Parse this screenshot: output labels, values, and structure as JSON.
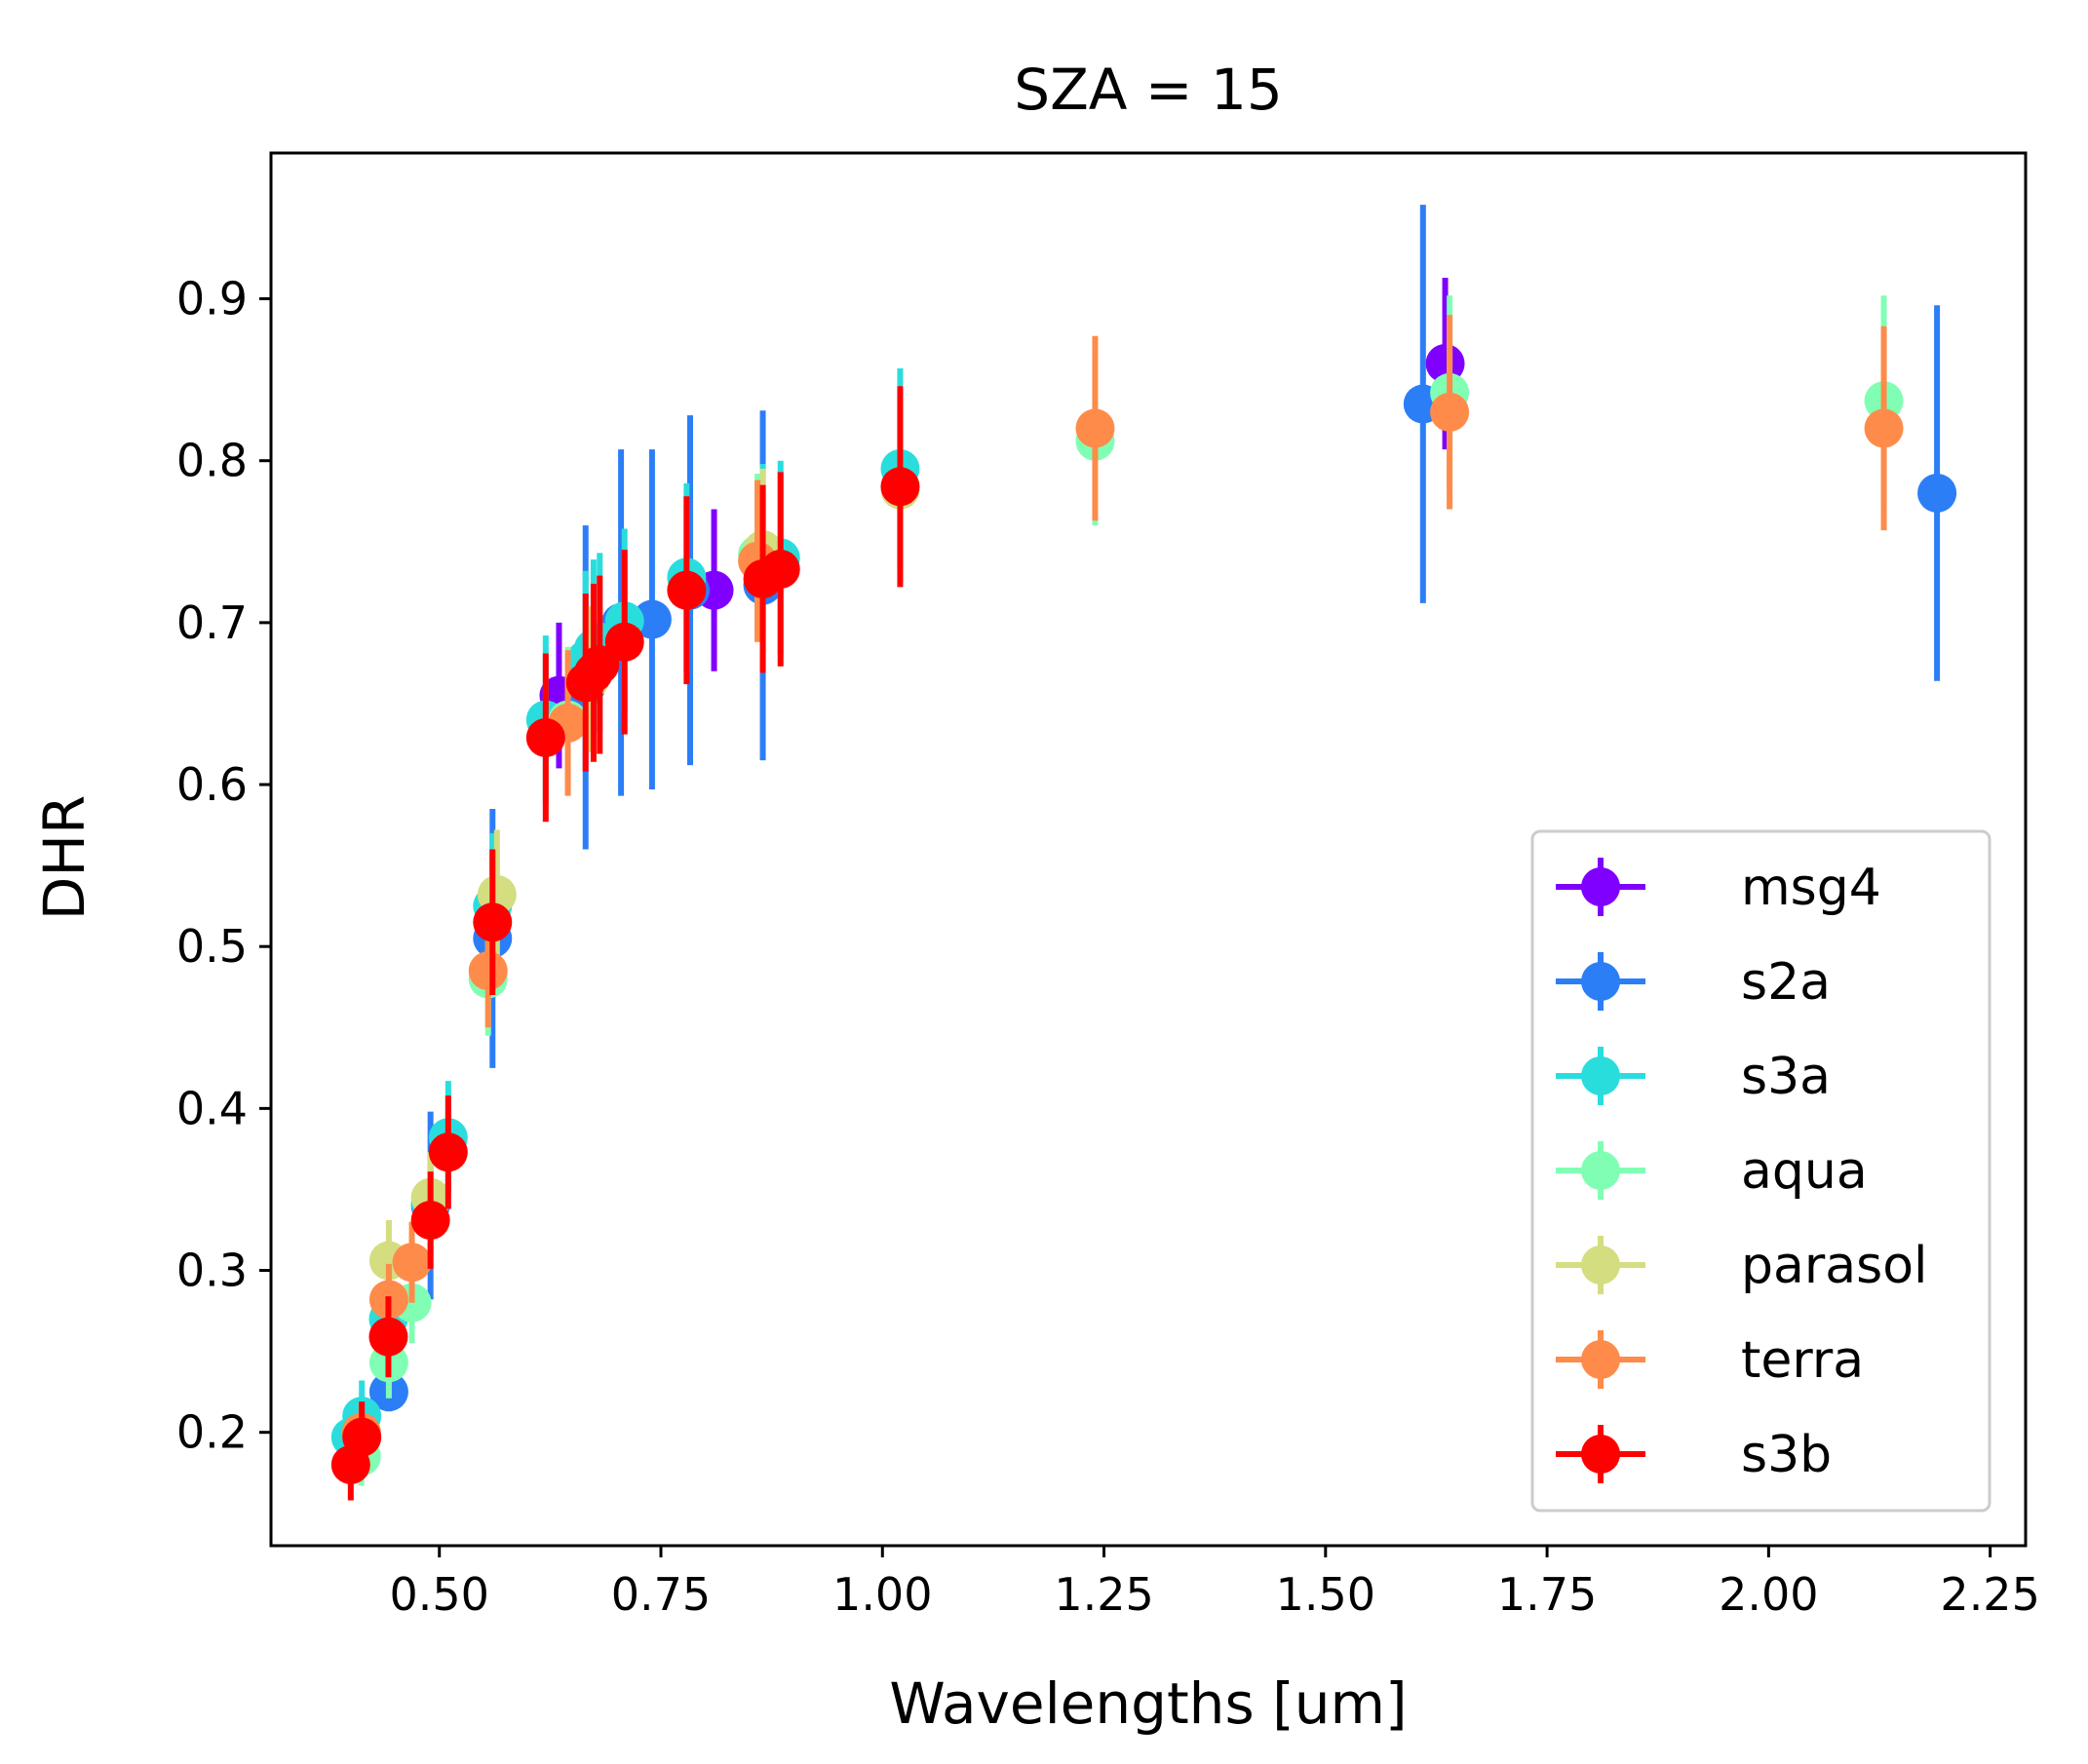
{
  "chart_data": {
    "type": "scatter",
    "title": "SZA = 15",
    "xlabel": "Wavelengths [um]",
    "ylabel": "DHR",
    "xlim": [
      0.31,
      2.29
    ],
    "ylim": [
      0.13,
      0.99
    ],
    "xticks": [
      0.5,
      0.75,
      1.0,
      1.25,
      1.5,
      1.75,
      2.0,
      2.25
    ],
    "xtick_labels": [
      "0.50",
      "0.75",
      "1.00",
      "1.25",
      "1.50",
      "1.75",
      "2.00",
      "2.25"
    ],
    "yticks": [
      0.2,
      0.3,
      0.4,
      0.5,
      0.6,
      0.7,
      0.8,
      0.9
    ],
    "ytick_labels": [
      "0.2",
      "0.3",
      "0.4",
      "0.5",
      "0.6",
      "0.7",
      "0.8",
      "0.9"
    ],
    "grid": false,
    "legend_position": "lower-right",
    "series": [
      {
        "name": "msg4",
        "color": "#8000ff",
        "points": [
          {
            "x": 0.635,
            "y": 0.655,
            "err": 0.045
          },
          {
            "x": 0.81,
            "y": 0.72,
            "err": 0.05
          },
          {
            "x": 1.635,
            "y": 0.86,
            "err": 0.053
          }
        ]
      },
      {
        "name": "s2a",
        "color": "#2c7ef7",
        "points": [
          {
            "x": 0.443,
            "y": 0.225,
            "err": 0.012
          },
          {
            "x": 0.49,
            "y": 0.34,
            "err": 0.058
          },
          {
            "x": 0.56,
            "y": 0.505,
            "err": 0.08
          },
          {
            "x": 0.665,
            "y": 0.66,
            "err": 0.1
          },
          {
            "x": 0.705,
            "y": 0.7,
            "err": 0.107
          },
          {
            "x": 0.74,
            "y": 0.702,
            "err": 0.105
          },
          {
            "x": 0.783,
            "y": 0.72,
            "err": 0.108
          },
          {
            "x": 0.865,
            "y": 0.723,
            "err": 0.108
          },
          {
            "x": 1.61,
            "y": 0.835,
            "err": 0.123
          },
          {
            "x": 2.19,
            "y": 0.78,
            "err": 0.116
          }
        ]
      },
      {
        "name": "s3a",
        "color": "#2adddd",
        "points": [
          {
            "x": 0.4,
            "y": 0.197,
            "err": 0.02
          },
          {
            "x": 0.4125,
            "y": 0.21,
            "err": 0.022
          },
          {
            "x": 0.4425,
            "y": 0.27,
            "err": 0.025
          },
          {
            "x": 0.49,
            "y": 0.342,
            "err": 0.03
          },
          {
            "x": 0.51,
            "y": 0.382,
            "err": 0.035
          },
          {
            "x": 0.56,
            "y": 0.525,
            "err": 0.045
          },
          {
            "x": 0.62,
            "y": 0.64,
            "err": 0.052
          },
          {
            "x": 0.665,
            "y": 0.677,
            "err": 0.055
          },
          {
            "x": 0.674,
            "y": 0.684,
            "err": 0.055
          },
          {
            "x": 0.681,
            "y": 0.688,
            "err": 0.055
          },
          {
            "x": 0.709,
            "y": 0.701,
            "err": 0.057
          },
          {
            "x": 0.779,
            "y": 0.728,
            "err": 0.058
          },
          {
            "x": 0.865,
            "y": 0.74,
            "err": 0.058
          },
          {
            "x": 0.885,
            "y": 0.74,
            "err": 0.06
          },
          {
            "x": 1.02,
            "y": 0.795,
            "err": 0.062
          }
        ]
      },
      {
        "name": "aqua",
        "color": "#80ffb4",
        "points": [
          {
            "x": 0.412,
            "y": 0.185,
            "err": 0.018
          },
          {
            "x": 0.443,
            "y": 0.243,
            "err": 0.022
          },
          {
            "x": 0.469,
            "y": 0.28,
            "err": 0.025
          },
          {
            "x": 0.555,
            "y": 0.48,
            "err": 0.035
          },
          {
            "x": 0.645,
            "y": 0.64,
            "err": 0.045
          },
          {
            "x": 0.859,
            "y": 0.742,
            "err": 0.05
          },
          {
            "x": 1.24,
            "y": 0.812,
            "err": 0.052
          },
          {
            "x": 1.64,
            "y": 0.842,
            "err": 0.06
          },
          {
            "x": 2.13,
            "y": 0.837,
            "err": 0.065
          }
        ]
      },
      {
        "name": "parasol",
        "color": "#d4dd80",
        "points": [
          {
            "x": 0.443,
            "y": 0.306,
            "err": 0.025
          },
          {
            "x": 0.49,
            "y": 0.345,
            "err": 0.028
          },
          {
            "x": 0.565,
            "y": 0.532,
            "err": 0.04
          },
          {
            "x": 0.67,
            "y": 0.665,
            "err": 0.045
          },
          {
            "x": 0.865,
            "y": 0.745,
            "err": 0.05
          },
          {
            "x": 1.02,
            "y": 0.782,
            "err": 0.05
          }
        ]
      },
      {
        "name": "terra",
        "color": "#ff8b4a",
        "points": [
          {
            "x": 0.412,
            "y": 0.2,
            "err": 0.018
          },
          {
            "x": 0.443,
            "y": 0.282,
            "err": 0.022
          },
          {
            "x": 0.469,
            "y": 0.305,
            "err": 0.025
          },
          {
            "x": 0.555,
            "y": 0.485,
            "err": 0.035
          },
          {
            "x": 0.645,
            "y": 0.638,
            "err": 0.045
          },
          {
            "x": 0.859,
            "y": 0.738,
            "err": 0.05
          },
          {
            "x": 1.24,
            "y": 0.82,
            "err": 0.057
          },
          {
            "x": 1.64,
            "y": 0.83,
            "err": 0.06
          },
          {
            "x": 2.13,
            "y": 0.82,
            "err": 0.063
          }
        ]
      },
      {
        "name": "s3b",
        "color": "#ff0000",
        "points": [
          {
            "x": 0.4,
            "y": 0.18,
            "err": 0.022
          },
          {
            "x": 0.4125,
            "y": 0.197,
            "err": 0.022
          },
          {
            "x": 0.4425,
            "y": 0.259,
            "err": 0.025
          },
          {
            "x": 0.49,
            "y": 0.331,
            "err": 0.03
          },
          {
            "x": 0.51,
            "y": 0.373,
            "err": 0.035
          },
          {
            "x": 0.56,
            "y": 0.515,
            "err": 0.045
          },
          {
            "x": 0.62,
            "y": 0.629,
            "err": 0.052
          },
          {
            "x": 0.665,
            "y": 0.663,
            "err": 0.055
          },
          {
            "x": 0.674,
            "y": 0.669,
            "err": 0.055
          },
          {
            "x": 0.681,
            "y": 0.674,
            "err": 0.055
          },
          {
            "x": 0.709,
            "y": 0.688,
            "err": 0.057
          },
          {
            "x": 0.779,
            "y": 0.72,
            "err": 0.058
          },
          {
            "x": 0.865,
            "y": 0.727,
            "err": 0.058
          },
          {
            "x": 0.885,
            "y": 0.733,
            "err": 0.06
          },
          {
            "x": 1.02,
            "y": 0.784,
            "err": 0.062
          }
        ]
      }
    ]
  }
}
